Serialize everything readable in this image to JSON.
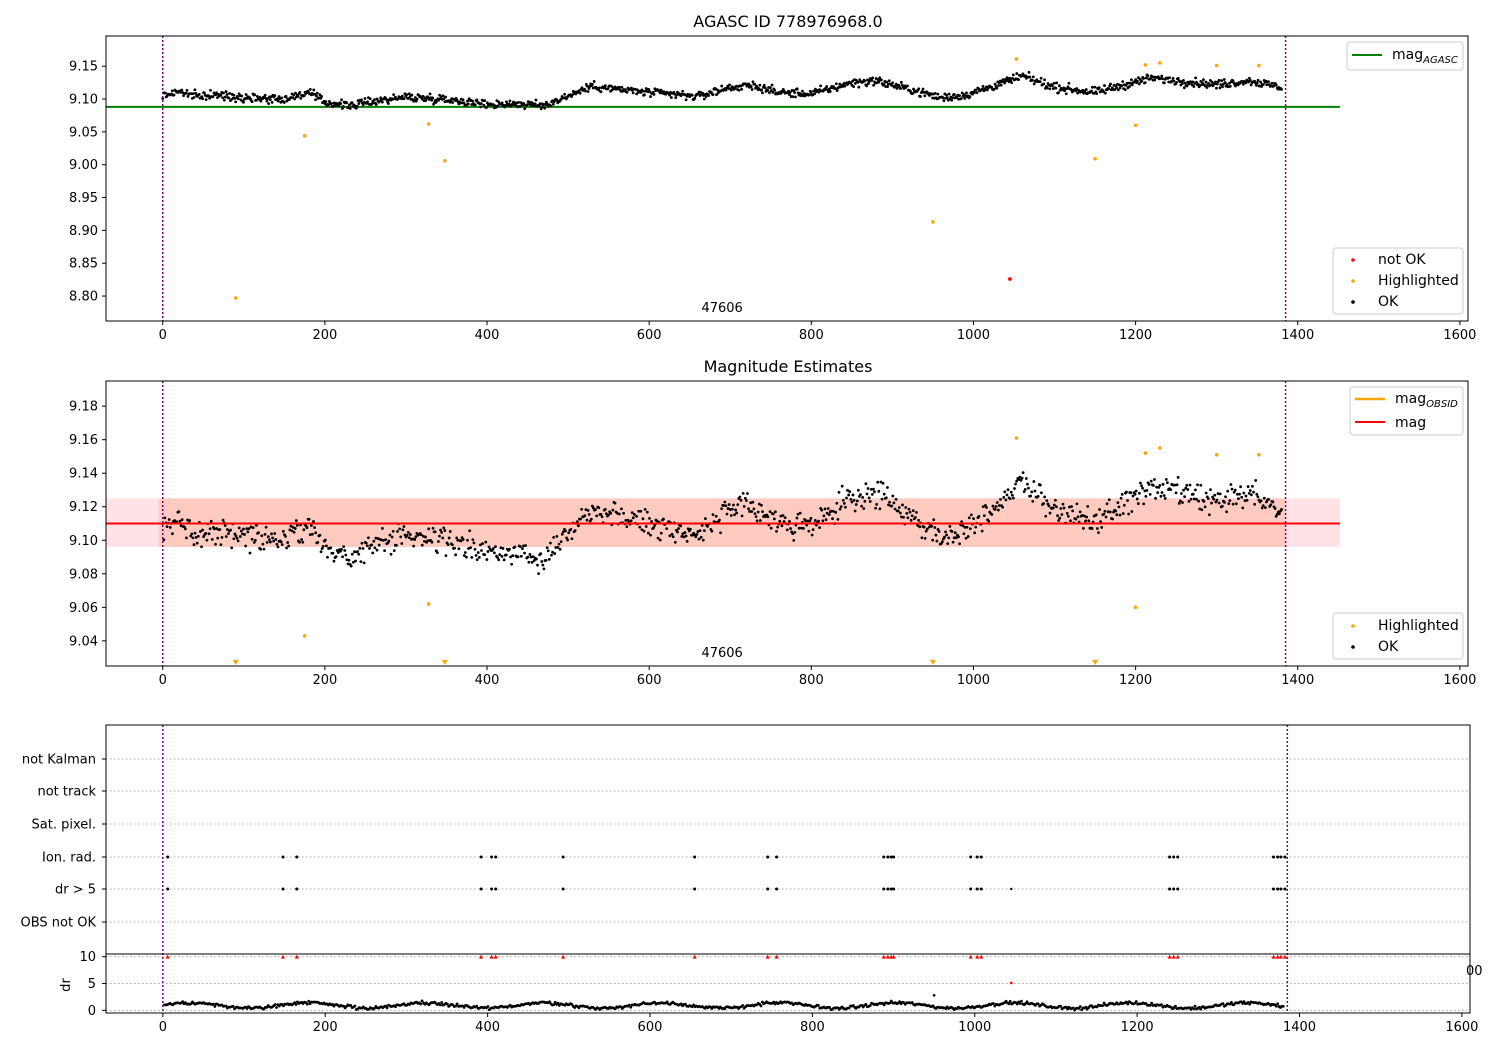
{
  "chart_data": [
    {
      "type": "scatter",
      "title": "AGASC ID 778976968.0",
      "xlim": [
        -70,
        1610
      ],
      "ylim": [
        8.762,
        9.196
      ],
      "x_ticks": [
        "0",
        "200",
        "400",
        "600",
        "800",
        "1000",
        "1200",
        "1400",
        "1600"
      ],
      "x_tick_values": [
        0,
        200,
        400,
        600,
        800,
        1000,
        1200,
        1400,
        1600
      ],
      "y_ticks": [
        "8.80",
        "8.85",
        "8.90",
        "8.95",
        "9.00",
        "9.05",
        "9.10",
        "9.15"
      ],
      "y_tick_values": [
        8.8,
        8.85,
        8.9,
        8.95,
        9.0,
        9.05,
        9.1,
        9.15
      ],
      "vlines": [
        0,
        1385
      ],
      "obsid_label": "47606",
      "obsid_x": 690,
      "hline": {
        "name": "mag_AGASC",
        "value": 9.088,
        "x": [
          0,
          1452
        ],
        "color": "#008000"
      },
      "legend_top": {
        "mag": "mag",
        "sub": "AGASC"
      },
      "legend_bottom": [
        "not OK",
        "Highlighted",
        "OK"
      ],
      "series": [
        {
          "name": "not OK",
          "color": "#ff0000",
          "x": [
            1045
          ],
          "y": [
            8.826
          ]
        },
        {
          "name": "Highlighted",
          "color": "#ffa500",
          "x": [
            90,
            175,
            328,
            348,
            950,
            1053,
            1150,
            1200,
            1212,
            1230,
            1300,
            1352
          ],
          "y": [
            8.797,
            9.044,
            9.062,
            9.006,
            8.913,
            9.161,
            9.009,
            9.06,
            9.152,
            9.155,
            9.151,
            9.151
          ]
        },
        {
          "name": "OK",
          "color": "#000000",
          "x_range": [
            0,
            1380
          ],
          "count": 1290
        }
      ],
      "ok_trend": {
        "x": [
          0,
          20,
          40,
          60,
          100,
          150,
          180,
          200,
          230,
          260,
          300,
          350,
          400,
          430,
          470,
          500,
          530,
          560,
          600,
          660,
          700,
          730,
          760,
          800,
          850,
          880,
          930,
          960,
          990,
          1030,
          1060,
          1100,
          1150,
          1180,
          1220,
          1250,
          1300,
          1340,
          1380
        ],
        "y": [
          9.105,
          9.112,
          9.104,
          9.106,
          9.103,
          9.1,
          9.11,
          9.095,
          9.09,
          9.097,
          9.103,
          9.1,
          9.092,
          9.093,
          9.09,
          9.105,
          9.12,
          9.115,
          9.11,
          9.104,
          9.118,
          9.12,
          9.11,
          9.108,
          9.125,
          9.128,
          9.112,
          9.102,
          9.106,
          9.122,
          9.135,
          9.118,
          9.11,
          9.12,
          9.132,
          9.128,
          9.122,
          9.128,
          9.118
        ]
      }
    },
    {
      "type": "scatter",
      "title": "Magnitude Estimates",
      "xlim": [
        -70,
        1610
      ],
      "ylim": [
        9.025,
        9.195
      ],
      "x_ticks": [
        "0",
        "200",
        "400",
        "600",
        "800",
        "1000",
        "1200",
        "1400",
        "1600"
      ],
      "x_tick_values": [
        0,
        200,
        400,
        600,
        800,
        1000,
        1200,
        1400,
        1600
      ],
      "y_ticks": [
        "9.04",
        "9.06",
        "9.08",
        "9.10",
        "9.12",
        "9.14",
        "9.16",
        "9.18"
      ],
      "y_tick_values": [
        9.04,
        9.06,
        9.08,
        9.1,
        9.12,
        9.14,
        9.16,
        9.18
      ],
      "vlines": [
        0,
        1385
      ],
      "obsid_label": "47606",
      "obsid_x": 690,
      "band": {
        "y0": 9.096,
        "y1": 9.125,
        "x": [
          -70,
          1452
        ]
      },
      "inner_band": {
        "y0": 9.096,
        "y1": 9.125,
        "x": [
          -5,
          1385
        ]
      },
      "lines": [
        {
          "name": "mag_OBSID",
          "color": "#ffa500",
          "value": 9.11
        },
        {
          "name": "mag",
          "color": "#ff0000",
          "value": 9.11
        }
      ],
      "legend_top": [
        {
          "mag": "mag",
          "sub": "OBSID"
        },
        {
          "mag": "mag",
          "sub": ""
        }
      ],
      "legend_bottom": [
        "Highlighted",
        "OK"
      ],
      "series": [
        {
          "name": "Highlighted",
          "color": "#ffa500",
          "x": [
            175,
            328,
            1053,
            1200,
            1212,
            1230,
            1300,
            1352
          ],
          "y": [
            9.043,
            9.062,
            9.161,
            9.06,
            9.152,
            9.155,
            9.151,
            9.151
          ]
        },
        {
          "name": "Highlighted (clipped)",
          "color": "#ffa500",
          "x": [
            90,
            348,
            950,
            1150
          ],
          "y": [
            9.027,
            9.027,
            9.027,
            9.027
          ]
        },
        {
          "name": "OK",
          "color": "#000000",
          "x_range": [
            0,
            1380
          ],
          "count": 1040
        }
      ]
    },
    {
      "type": "scatter",
      "title": "",
      "xlim": [
        -70,
        1610
      ],
      "categories": [
        "not Kalman",
        "not track",
        "Sat. pixel.",
        "Ion. rad.",
        "dr > 5",
        "OBS not OK"
      ],
      "vlines": [
        0,
        1385
      ],
      "flag_x": [
        6,
        148,
        165,
        392,
        405,
        410,
        493,
        655,
        745,
        756,
        888,
        893,
        897,
        900,
        995,
        1003,
        1008,
        1240,
        1245,
        1250,
        1368,
        1373,
        1377,
        1382
      ],
      "flag_dr_extra_x": [
        1045
      ],
      "dr_panel": {
        "ylabel": "dr",
        "ylim": [
          -0.5,
          10.5
        ],
        "y_ticks": [
          "0",
          "5",
          "10"
        ],
        "y_tick_values": [
          0,
          5,
          10
        ],
        "clipped_marker_y": 10,
        "outliers": [
          {
            "x": 950,
            "y": 2.8
          },
          {
            "x": 1045,
            "y": 5.1
          }
        ],
        "stray_label": "00"
      }
    }
  ]
}
